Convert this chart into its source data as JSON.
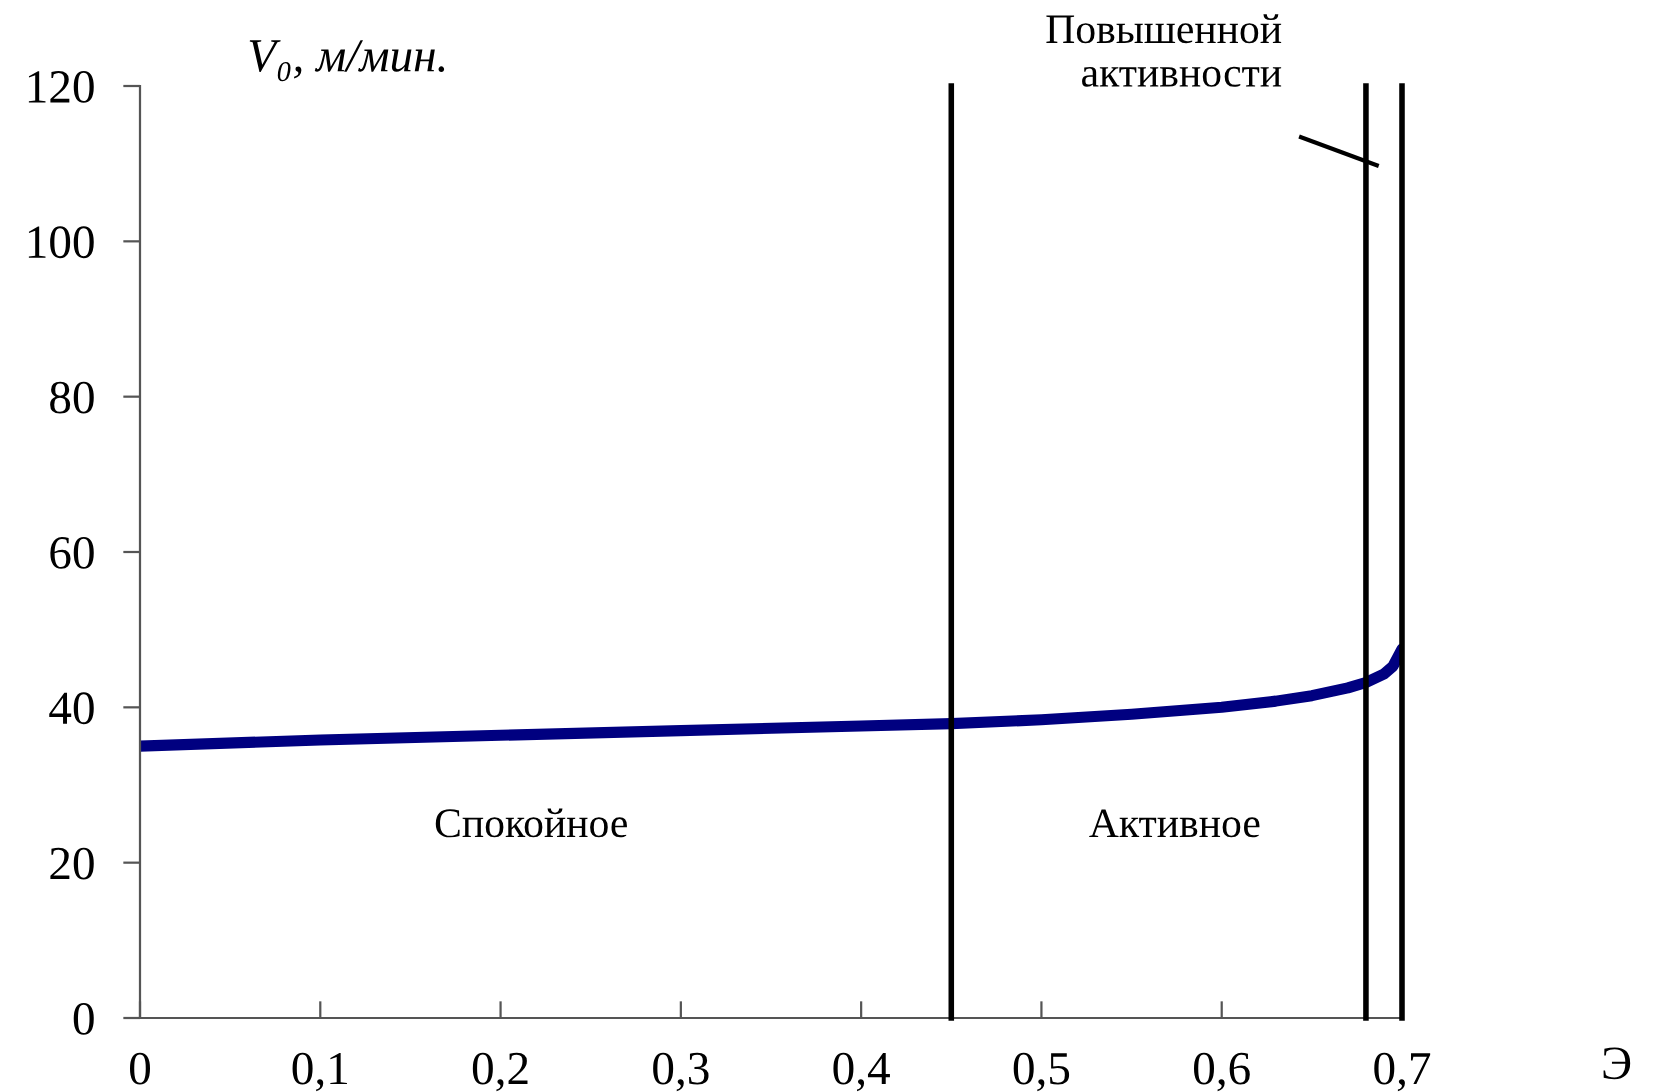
{
  "chart_data": {
    "type": "line",
    "xlabel": "Э",
    "ylabel": "V₀, м/мин.",
    "x": [
      0,
      0.1,
      0.2,
      0.3,
      0.4,
      0.45,
      0.5,
      0.55,
      0.6,
      0.63,
      0.65,
      0.67,
      0.68,
      0.69,
      0.695,
      0.7
    ],
    "series": [
      {
        "color": "#000080",
        "values": [
          35,
          35.8,
          36.4,
          37,
          37.6,
          37.9,
          38.4,
          39.1,
          40,
          40.8,
          41.5,
          42.5,
          43.2,
          44.3,
          45.3,
          47.5
        ]
      }
    ],
    "xlim": [
      0,
      0.7
    ],
    "ylim": [
      0,
      120
    ],
    "xticks": [
      0,
      {
        "value": 0.1,
        "label": "0,1"
      },
      {
        "value": 0.2,
        "label": "0,2"
      },
      {
        "value": 0.3,
        "label": "0,3"
      },
      {
        "value": 0.4,
        "label": "0,4"
      },
      {
        "value": 0.5,
        "label": "0,5"
      },
      {
        "value": 0.6,
        "label": "0,6"
      },
      {
        "value": 0.7,
        "label": "0,7"
      }
    ],
    "yticks": [
      0,
      20,
      40,
      60,
      80,
      100,
      120
    ],
    "ref_lines": [
      {
        "axis": "x",
        "value": 0.45,
        "color": "#000000"
      },
      {
        "axis": "x",
        "value": 0.68,
        "color": "#000000"
      },
      {
        "axis": "x",
        "value": 0.7,
        "color": "#000000"
      }
    ],
    "annotations": [
      "Спокойное",
      "Активное",
      "Повышенной\nактивности"
    ],
    "grid": false,
    "legend": false,
    "marker": "none",
    "line_style": "solid"
  }
}
